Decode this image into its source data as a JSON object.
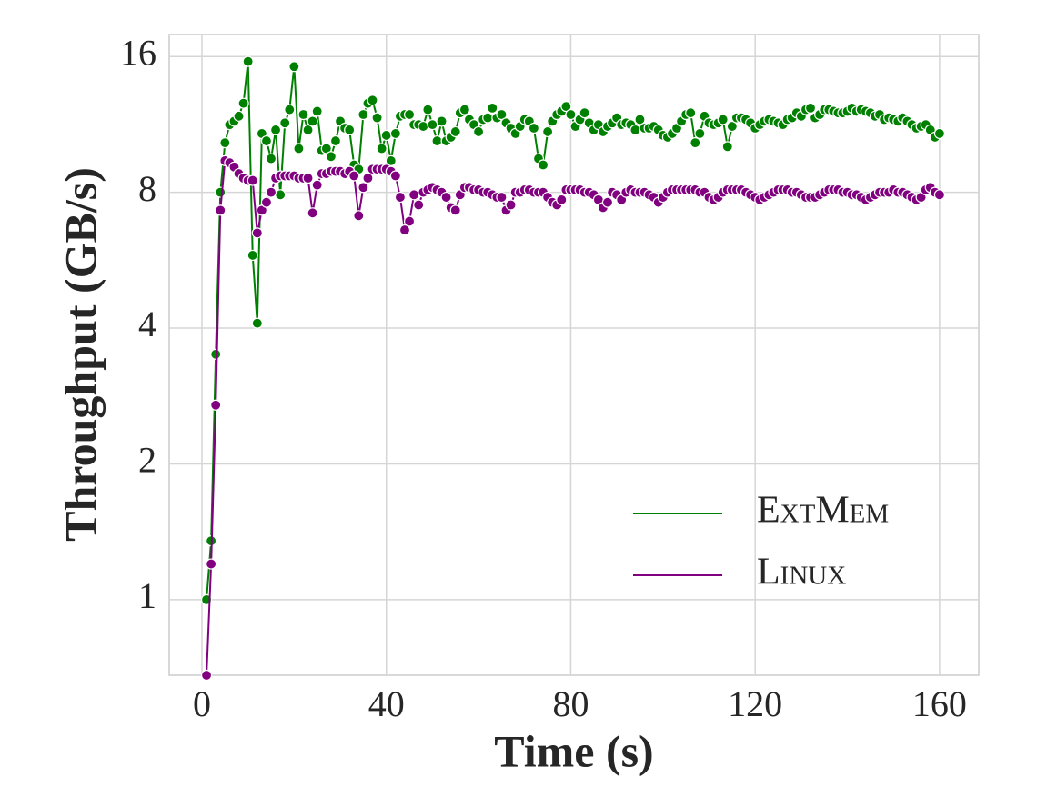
{
  "chart_data": {
    "type": "line",
    "xlabel": "Time (s)",
    "ylabel": "Throughput (GB/s)",
    "yscale": "log2",
    "grid": true,
    "legend": "lower right",
    "xlim": [
      -7.1,
      168.5
    ],
    "xticks": [
      0,
      40,
      80,
      120,
      160
    ],
    "ylim": [
      0.68,
      17.9
    ],
    "yticks": [
      1,
      2,
      4,
      8,
      16
    ],
    "x": [
      1,
      2,
      3,
      4,
      5,
      6,
      7,
      8,
      9,
      10,
      11,
      12,
      13,
      14,
      15,
      16,
      17,
      18,
      19,
      20,
      21,
      22,
      23,
      24,
      25,
      26,
      27,
      28,
      29,
      30,
      31,
      32,
      33,
      34,
      35,
      36,
      37,
      38,
      39,
      40,
      41,
      42,
      43,
      44,
      45,
      46,
      47,
      48,
      49,
      50,
      51,
      52,
      53,
      54,
      55,
      56,
      57,
      58,
      59,
      60,
      61,
      62,
      63,
      64,
      65,
      66,
      67,
      68,
      69,
      70,
      71,
      72,
      73,
      74,
      75,
      76,
      77,
      78,
      79,
      80,
      81,
      82,
      83,
      84,
      85,
      86,
      87,
      88,
      89,
      90,
      91,
      92,
      93,
      94,
      95,
      96,
      97,
      98,
      99,
      100,
      101,
      102,
      103,
      104,
      105,
      106,
      107,
      108,
      109,
      110,
      111,
      112,
      113,
      114,
      115,
      116,
      117,
      118,
      119,
      120,
      121,
      122,
      123,
      124,
      125,
      126,
      127,
      128,
      129,
      130,
      131,
      132,
      133,
      134,
      135,
      136,
      137,
      138,
      139,
      140,
      141,
      142,
      143,
      144,
      145,
      146,
      147,
      148,
      149,
      150,
      151,
      152,
      153,
      154,
      155,
      156,
      157,
      158,
      159,
      160
    ],
    "series": [
      {
        "name": "ExtMem",
        "color": "#008000",
        "values": [
          1.0,
          1.35,
          3.5,
          8.0,
          10.3,
          11.3,
          11.5,
          11.8,
          12.6,
          15.6,
          5.8,
          4.1,
          10.8,
          10.4,
          9.5,
          11.0,
          7.9,
          11.4,
          12.2,
          15.2,
          10.0,
          11.9,
          11.0,
          11.5,
          12.1,
          9.9,
          10.0,
          9.6,
          10.4,
          11.5,
          11.1,
          11.0,
          9.2,
          9.0,
          11.9,
          12.6,
          12.8,
          11.7,
          10.0,
          10.7,
          9.4,
          10.8,
          11.8,
          11.9,
          11.9,
          11.3,
          11.3,
          11.2,
          12.2,
          11.3,
          10.4,
          11.5,
          10.4,
          10.6,
          10.9,
          12.0,
          12.2,
          11.6,
          11.3,
          10.9,
          11.6,
          11.7,
          12.3,
          11.7,
          11.9,
          11.4,
          11.1,
          10.8,
          11.2,
          11.6,
          11.5,
          11.1,
          9.5,
          9.2,
          10.9,
          11.5,
          11.9,
          12.1,
          12.4,
          11.9,
          11.2,
          11.6,
          12.0,
          11.4,
          11.0,
          11.3,
          10.9,
          11.2,
          11.4,
          11.7,
          11.3,
          11.4,
          11.3,
          11.0,
          11.6,
          11.1,
          11.1,
          11.2,
          11.0,
          10.7,
          10.6,
          10.8,
          11.1,
          11.5,
          11.9,
          12.0,
          10.3,
          10.8,
          11.8,
          11.4,
          11.3,
          11.4,
          11.6,
          10.1,
          11.2,
          11.7,
          11.7,
          11.6,
          11.4,
          11.1,
          11.3,
          11.5,
          11.6,
          11.5,
          11.4,
          11.3,
          11.6,
          11.7,
          12.0,
          11.8,
          12.2,
          12.3,
          11.7,
          11.9,
          12.2,
          12.2,
          12.1,
          12.0,
          12.0,
          12.1,
          12.3,
          12.1,
          12.2,
          12.1,
          12.0,
          11.8,
          11.9,
          11.6,
          11.7,
          11.6,
          11.5,
          11.7,
          11.5,
          11.3,
          11.1,
          11.2,
          11.3,
          11.0,
          10.6,
          10.8
        ]
      },
      {
        "name": "Linux",
        "color": "#800080",
        "values": [
          0.68,
          1.2,
          2.7,
          7.3,
          9.4,
          9.3,
          9.1,
          8.8,
          8.6,
          8.5,
          8.5,
          6.5,
          7.3,
          7.6,
          8.0,
          8.6,
          8.7,
          8.7,
          8.7,
          8.7,
          8.6,
          8.6,
          8.6,
          7.2,
          8.3,
          8.8,
          8.8,
          8.9,
          8.9,
          8.9,
          8.8,
          8.9,
          8.7,
          7.1,
          8.2,
          8.6,
          9.0,
          9.0,
          9.0,
          9.0,
          8.9,
          8.7,
          7.8,
          6.6,
          6.9,
          7.9,
          7.5,
          8.0,
          8.1,
          8.2,
          8.1,
          8.0,
          7.8,
          7.4,
          7.3,
          7.9,
          8.2,
          8.2,
          8.1,
          8.1,
          8.0,
          8.0,
          7.9,
          7.8,
          7.8,
          7.3,
          7.5,
          8.0,
          8.0,
          8.1,
          8.1,
          8.0,
          8.0,
          8.0,
          7.8,
          7.6,
          7.5,
          7.7,
          8.1,
          8.1,
          8.1,
          8.1,
          8.0,
          8.0,
          7.9,
          7.7,
          7.4,
          7.6,
          8.0,
          7.9,
          7.7,
          8.0,
          8.1,
          8.0,
          8.0,
          8.0,
          7.9,
          7.8,
          7.6,
          7.8,
          8.0,
          8.1,
          8.1,
          8.1,
          8.1,
          8.1,
          8.1,
          8.0,
          8.0,
          7.8,
          7.7,
          7.8,
          8.0,
          8.1,
          8.1,
          8.1,
          8.1,
          8.0,
          7.9,
          7.8,
          7.7,
          7.8,
          7.9,
          8.0,
          8.1,
          8.1,
          8.1,
          8.0,
          8.0,
          7.9,
          7.8,
          7.8,
          7.8,
          7.9,
          8.0,
          8.1,
          8.1,
          8.1,
          8.0,
          8.0,
          7.9,
          7.9,
          7.8,
          7.7,
          7.8,
          7.9,
          8.0,
          8.0,
          8.0,
          8.1,
          8.0,
          8.0,
          7.9,
          7.8,
          7.7,
          7.8,
          8.1,
          8.2,
          8.0,
          7.9
        ]
      }
    ]
  }
}
